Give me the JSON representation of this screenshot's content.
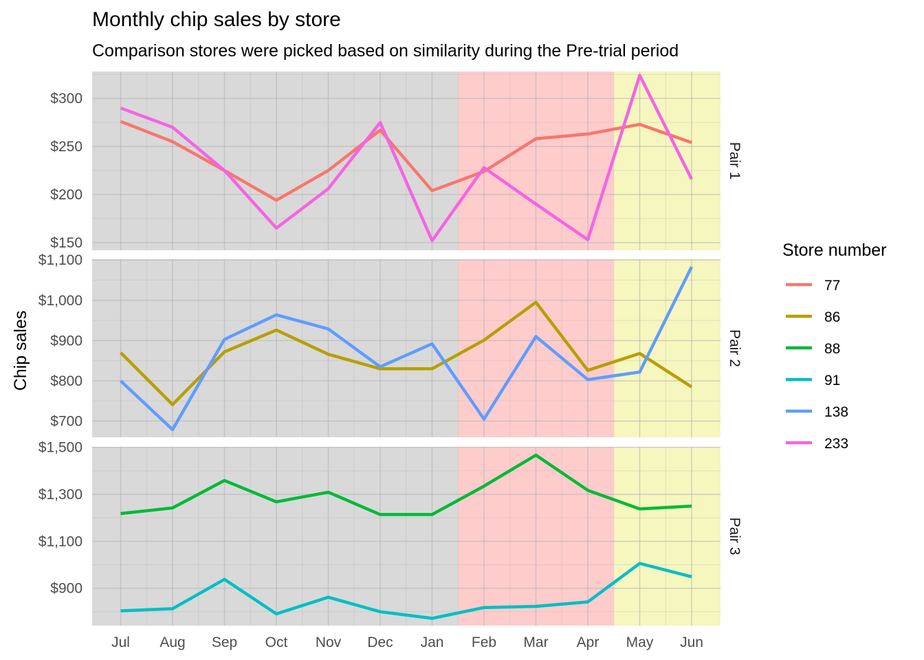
{
  "chart_data": {
    "type": "line",
    "title": "Monthly chip sales by store",
    "subtitle": "Comparison stores were picked based on similarity during the Pre-trial period",
    "ylabel": "Chip sales",
    "xlabel": "",
    "categories": [
      "Jul",
      "Aug",
      "Sep",
      "Oct",
      "Nov",
      "Dec",
      "Jan",
      "Feb",
      "Mar",
      "Apr",
      "May",
      "Jun"
    ],
    "shading": [
      {
        "from": "Jul",
        "to": "Jan",
        "color": "#d9d9d9"
      },
      {
        "from": "Feb",
        "to": "Apr",
        "color": "#ffcccc"
      },
      {
        "from": "May",
        "to": "Jun",
        "color": "#f6f6bf"
      }
    ],
    "legend": {
      "title": "Store number",
      "position": "right",
      "entries": [
        {
          "label": "77",
          "color": "#F8766D"
        },
        {
          "label": "86",
          "color": "#B79F00"
        },
        {
          "label": "88",
          "color": "#00BA38"
        },
        {
          "label": "91",
          "color": "#00BFC4"
        },
        {
          "label": "138",
          "color": "#619CFF"
        },
        {
          "label": "233",
          "color": "#F564E3"
        }
      ]
    },
    "grid": true,
    "panels": [
      {
        "strip": "Pair 1",
        "ylim": [
          142,
          328
        ],
        "yticks": [
          {
            "value": 150,
            "label": "$150"
          },
          {
            "value": 200,
            "label": "$200"
          },
          {
            "value": 250,
            "label": "$250"
          },
          {
            "value": 300,
            "label": "$300"
          }
        ],
        "series": [
          {
            "name": "77",
            "color": "#F8766D",
            "values": [
              276,
              255,
              225,
              194,
              225,
              267,
              204,
              224,
              258,
              263,
              273,
              254
            ]
          },
          {
            "name": "233",
            "color": "#F564E3",
            "values": [
              290,
              270,
              225,
              165,
              206,
              275,
              152,
              228,
              190,
              153,
              324,
              216
            ]
          }
        ]
      },
      {
        "strip": "Pair 2",
        "ylim": [
          660,
          1102
        ],
        "yticks": [
          {
            "value": 700,
            "label": "$700"
          },
          {
            "value": 800,
            "label": "$800"
          },
          {
            "value": 900,
            "label": "$900"
          },
          {
            "value": 1000,
            "label": "$1,000"
          },
          {
            "value": 1100,
            "label": "$1,100"
          }
        ],
        "series": [
          {
            "name": "86",
            "color": "#B79F00",
            "values": [
              870,
              741,
              872,
              926,
              866,
              830,
              830,
              901,
              995,
              826,
              868,
              785
            ]
          },
          {
            "name": "138",
            "color": "#619CFF",
            "values": [
              800,
              679,
              903,
              964,
              929,
              835,
              892,
              705,
              910,
              803,
              822,
              1083
            ]
          }
        ]
      },
      {
        "strip": "Pair 3",
        "ylim": [
          741,
          1502
        ],
        "yticks": [
          {
            "value": 900,
            "label": "$900"
          },
          {
            "value": 1100,
            "label": "$1,100"
          },
          {
            "value": 1300,
            "label": "$1,300"
          },
          {
            "value": 1500,
            "label": "$1,500"
          }
        ],
        "series": [
          {
            "name": "88",
            "color": "#00BA38",
            "values": [
              1218,
              1242,
              1359,
              1268,
              1309,
              1214,
              1214,
              1335,
              1467,
              1317,
              1238,
              1250
            ]
          },
          {
            "name": "91",
            "color": "#00BFC4",
            "values": [
              804,
              813,
              938,
              791,
              862,
              800,
              772,
              818,
              823,
              842,
              1006,
              949
            ]
          }
        ]
      }
    ]
  }
}
